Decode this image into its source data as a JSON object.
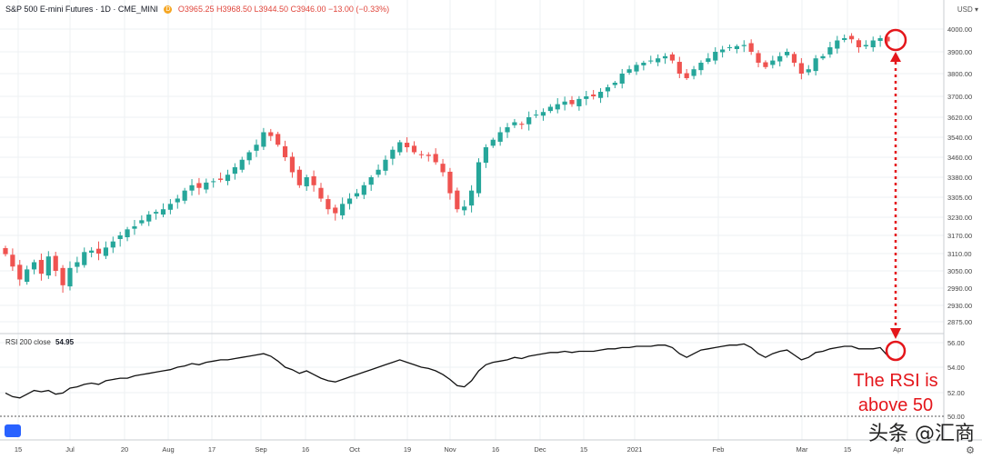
{
  "header": {
    "symbol": "S&P 500 E-mini Futures · 1D · CME_MINI",
    "badge": "D",
    "ohlc": "O3965.25  H3968.50  L3944.50  C3946.00  −13.00 (−0.33%)"
  },
  "currency": "USD",
  "watermark": "头条 @汇商",
  "rsi_header": {
    "label": "RSI 200 close",
    "value": "54.95"
  },
  "annotation": {
    "line1": "The RSI is",
    "line2": "above 50"
  },
  "colors": {
    "up": "#26a69a",
    "down": "#ef5350",
    "annotation": "#e4161b",
    "rsi": "#111111",
    "grid": "#eef0f3"
  },
  "chart_data": [
    {
      "type": "candlestick",
      "title": "S&P 500 E-mini Futures",
      "price_ticks": [
        "4000.00",
        "3900.00",
        "3800.00",
        "3700.00",
        "3620.00",
        "3540.00",
        "3460.00",
        "3380.00",
        "3305.00",
        "3230.00",
        "3170.00",
        "3110.00",
        "3050.00",
        "2990.00",
        "2930.00",
        "2875.00"
      ],
      "x_tick_labels": [
        "15",
        "Jul",
        "20",
        "Aug",
        "17",
        "Sep",
        "16",
        "Oct",
        "19",
        "Nov",
        "16",
        "Dec",
        "15",
        "2021",
        "Feb",
        "Mar",
        "15",
        "Apr"
      ],
      "close_path": [
        3108,
        3065,
        3020,
        3055,
        3080,
        3040,
        3100,
        3050,
        3000,
        3060,
        3080,
        3115,
        3120,
        3110,
        3130,
        3150,
        3170,
        3190,
        3200,
        3220,
        3240,
        3250,
        3260,
        3280,
        3300,
        3330,
        3350,
        3340,
        3360,
        3365,
        3370,
        3390,
        3420,
        3450,
        3480,
        3510,
        3560,
        3545,
        3510,
        3460,
        3400,
        3350,
        3380,
        3350,
        3300,
        3260,
        3245,
        3280,
        3300,
        3320,
        3350,
        3380,
        3410,
        3450,
        3490,
        3520,
        3500,
        3480,
        3470,
        3465,
        3440,
        3400,
        3320,
        3260,
        3270,
        3330,
        3440,
        3500,
        3530,
        3560,
        3580,
        3600,
        3590,
        3620,
        3630,
        3640,
        3660,
        3670,
        3680,
        3670,
        3690,
        3700,
        3700,
        3720,
        3740,
        3760,
        3800,
        3820,
        3840,
        3850,
        3860,
        3870,
        3880,
        3860,
        3800,
        3780,
        3820,
        3850,
        3870,
        3900,
        3910,
        3920,
        3925,
        3930,
        3900,
        3850,
        3830,
        3860,
        3880,
        3900,
        3850,
        3800,
        3820,
        3870,
        3880,
        3920,
        3950,
        3960,
        3955,
        3920,
        3930,
        3950,
        3960,
        3946
      ],
      "last": {
        "open": 3965.25,
        "high": 3968.5,
        "low": 3944.5,
        "close": 3946.0,
        "change": -13.0,
        "change_pct": -0.33
      }
    },
    {
      "type": "line",
      "title": "RSI 200 close",
      "series": [
        {
          "name": "RSI 200 close",
          "values": [
            51.9,
            51.6,
            51.5,
            51.8,
            52.1,
            52.0,
            52.1,
            51.8,
            51.9,
            52.3,
            52.4,
            52.6,
            52.7,
            52.6,
            52.9,
            53.0,
            53.1,
            53.1,
            53.3,
            53.4,
            53.5,
            53.6,
            53.7,
            53.8,
            54.0,
            54.1,
            54.3,
            54.2,
            54.4,
            54.5,
            54.6,
            54.6,
            54.7,
            54.8,
            54.9,
            55.0,
            55.1,
            54.9,
            54.5,
            54.0,
            53.8,
            53.5,
            53.7,
            53.4,
            53.1,
            52.9,
            52.8,
            53.0,
            53.2,
            53.4,
            53.6,
            53.8,
            54.0,
            54.2,
            54.4,
            54.6,
            54.4,
            54.2,
            54.0,
            53.9,
            53.7,
            53.4,
            53.0,
            52.5,
            52.4,
            52.9,
            53.7,
            54.2,
            54.4,
            54.5,
            54.6,
            54.8,
            54.7,
            54.9,
            55.0,
            55.1,
            55.2,
            55.2,
            55.3,
            55.2,
            55.3,
            55.3,
            55.3,
            55.4,
            55.5,
            55.5,
            55.6,
            55.6,
            55.7,
            55.7,
            55.7,
            55.8,
            55.8,
            55.6,
            55.1,
            54.8,
            55.1,
            55.4,
            55.5,
            55.6,
            55.7,
            55.8,
            55.8,
            55.9,
            55.6,
            55.1,
            54.8,
            55.1,
            55.3,
            55.4,
            55.0,
            54.6,
            54.8,
            55.2,
            55.3,
            55.5,
            55.6,
            55.7,
            55.7,
            55.5,
            55.5,
            55.5,
            55.6,
            54.95
          ]
        }
      ],
      "y_ticks": [
        "56.00",
        "54.00",
        "52.00",
        "50.00"
      ],
      "reference_level": 50,
      "ylim": [
        49.8,
        56.4
      ]
    }
  ]
}
